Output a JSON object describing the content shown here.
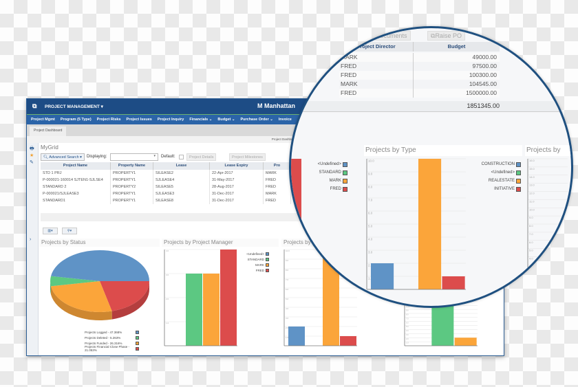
{
  "app": {
    "title": "PROJECT MANAGEMENT",
    "brand": "Manhattan"
  },
  "nav": [
    "Project Mgmt",
    "Program (5 Type)",
    "Project Risks",
    "Project Issues",
    "Project Inquiry",
    "Financials ⌄",
    "Budget ⌄",
    "Purchase Order ⌄",
    "Invoice"
  ],
  "tab": "Project Dashboard",
  "breadcrumb": "Project Dashboard",
  "grid": {
    "title": "MyGrid",
    "advanced_search": "Advanced Search ▾",
    "displaying_label": "Displaying:",
    "displaying_value": "",
    "default_label": "Default:",
    "buttons": [
      "Project Details",
      "Project Milestones",
      "Documents",
      "Raise PO"
    ],
    "columns": [
      "Project Name",
      "Property Name",
      "Lease",
      "Lease Expiry",
      "Pro",
      "Project Director",
      "Budget"
    ],
    "rows": [
      [
        "STD 1 PRJ",
        "PROPERTY1",
        "SILEASE2",
        "22-Apr-2017",
        "MARK",
        "MARK",
        "49000.00"
      ],
      [
        "P-000021-160014 SJTEN1-SJLSE4",
        "PROPERTY1",
        "SJLEASE4",
        "31-May-2017",
        "FRED",
        "FRED",
        "97500.00"
      ],
      [
        "STANDARD 2",
        "PROPERTY2",
        "SILEASE5",
        "28-Aug-2017",
        "FRED",
        "FRED",
        "100300.00"
      ],
      [
        "P-000021/SJLEASE3",
        "PROPERTY1",
        "SJLEASE3",
        "31-Dec-2017",
        "MARK",
        "MARK",
        "104545.00"
      ],
      [
        "STANDARD1",
        "PROPERTY1",
        "SILEASE8",
        "31-Dec-2017",
        "FRED",
        "FRED",
        "1500000.00"
      ]
    ],
    "total": "1851345.00"
  },
  "colors": {
    "blue": "#5f93c6",
    "green": "#5cc882",
    "orange": "#fba53a",
    "red": "#dc4c4c",
    "header": "#1d4c85",
    "nav": "#2b64a8"
  },
  "chart_data": [
    {
      "type": "pie",
      "title": "Projects by Status",
      "labels": [
        "Projects Logged - 47.368%",
        "Projects Deleted - 5.263%",
        "Projects Funded - 26.316%",
        "Projects Financial Close Phase - 21.053%"
      ],
      "values": [
        47.368,
        5.263,
        26.316,
        21.053
      ],
      "colors": [
        "#5f93c6",
        "#5cc882",
        "#fba53a",
        "#dc4c4c"
      ],
      "legend": "bottom"
    },
    {
      "type": "bar",
      "title": "Projects by Project Manager",
      "categories": [
        "<Undefined>",
        "STANDARD",
        "MARK",
        "FRED"
      ],
      "values": [
        0,
        3,
        3,
        4
      ],
      "colors": [
        "#5f93c6",
        "#5cc882",
        "#fba53a",
        "#dc4c4c"
      ],
      "ylim": [
        0,
        4
      ],
      "yticks": [
        "1.0",
        "2.0",
        "3.0",
        "4.0"
      ],
      "legend": "right",
      "grid": true
    },
    {
      "type": "bar",
      "title": "Projects by Type",
      "categories": [
        "CONSTRUCTION",
        "<Undefined>",
        "REALESTATE",
        "INITIATIVE"
      ],
      "values": [
        2,
        0,
        10,
        1
      ],
      "colors": [
        "#5f93c6",
        "#5cc882",
        "#fba53a",
        "#dc4c4c"
      ],
      "ylim": [
        0,
        10
      ],
      "yticks": [
        "1.0",
        "2.0",
        "3.0",
        "4.0",
        "5.0",
        "6.0",
        "7.0",
        "8.0",
        "9.0",
        "10.0"
      ],
      "legend": "right",
      "grid": true
    },
    {
      "type": "bar",
      "title": "Projects by",
      "categories": [
        "",
        "",
        ""
      ],
      "values": [
        0,
        16,
        2
      ],
      "colors": [
        "#5f93c6",
        "#5cc882",
        "#fba53a"
      ],
      "ylim": [
        0,
        16
      ],
      "yticks": [
        "1.0",
        "2.0",
        "3.0",
        "4.0",
        "5.0",
        "6.0",
        "7.0",
        "8.0",
        "9.0",
        "10.0",
        "11.0",
        "12.0",
        "13.0",
        "14.0",
        "15.0",
        "16.0"
      ],
      "grid": true
    }
  ]
}
